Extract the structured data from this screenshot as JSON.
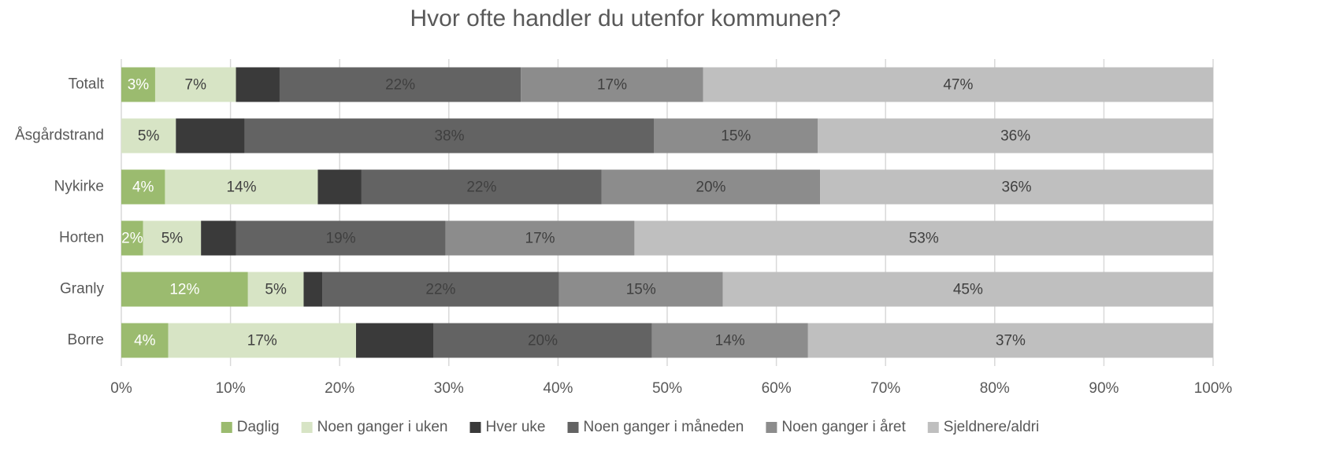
{
  "chart_data": {
    "type": "stacked-bar-horizontal",
    "title": "Hvor ofte handler du utenfor kommunen?",
    "categories": [
      "Totalt",
      "Åsgårdstrand",
      "Nykirke",
      "Horten",
      "Granly",
      "Borre"
    ],
    "series": [
      {
        "name": "Daglig",
        "color": "#9bbb6f",
        "values": [
          3.1,
          0,
          4.0,
          2.0,
          11.6,
          4.3
        ],
        "value_labels": [
          "3%",
          null,
          "4%",
          "2%",
          "12%",
          "4%"
        ]
      },
      {
        "name": "Noen ganger i uken",
        "color": "#d7e4c5",
        "values": [
          7.4,
          5.0,
          14.0,
          5.3,
          5.1,
          17.2
        ],
        "value_labels": [
          "7%",
          "5%",
          "14%",
          "5%",
          "5%",
          "17%"
        ]
      },
      {
        "name": "Hver uke",
        "color": "#3a3a3a",
        "values": [
          4.0,
          6.3,
          4.0,
          3.2,
          1.7,
          7.1
        ]
      },
      {
        "name": "Noen ganger i måneden",
        "color": "#636363",
        "values": [
          22.1,
          37.5,
          22.0,
          19.2,
          21.7,
          20.0
        ],
        "value_labels": [
          "22%",
          "38%",
          "22%",
          "19%",
          "22%",
          "20%"
        ]
      },
      {
        "name": "Noen ganger i året",
        "color": "#8c8c8c",
        "values": [
          16.7,
          15.0,
          20.0,
          17.3,
          15.0,
          14.3
        ],
        "value_labels": [
          "17%",
          "15%",
          "20%",
          "17%",
          "15%",
          "14%"
        ]
      },
      {
        "name": "Sjeldnere/aldri",
        "color": "#bfbfbf",
        "values": [
          46.7,
          36.2,
          36.0,
          53.0,
          44.9,
          37.1
        ],
        "value_labels": [
          "47%",
          "36%",
          "36%",
          "53%",
          "45%",
          "37%"
        ]
      }
    ],
    "xlim": [
      0,
      100
    ],
    "xticks": [
      {
        "value": 0,
        "label": "0%"
      },
      {
        "value": 10,
        "label": "10%"
      },
      {
        "value": 20,
        "label": "20%"
      },
      {
        "value": 30,
        "label": "30%"
      },
      {
        "value": 40,
        "label": "40%"
      },
      {
        "value": 50,
        "label": "50%"
      },
      {
        "value": 60,
        "label": "60%"
      },
      {
        "value": 70,
        "label": "70%"
      },
      {
        "value": 80,
        "label": "80%"
      },
      {
        "value": 90,
        "label": "90%"
      },
      {
        "value": 100,
        "label": "100%"
      }
    ],
    "grid": true,
    "legend": "bottom"
  }
}
